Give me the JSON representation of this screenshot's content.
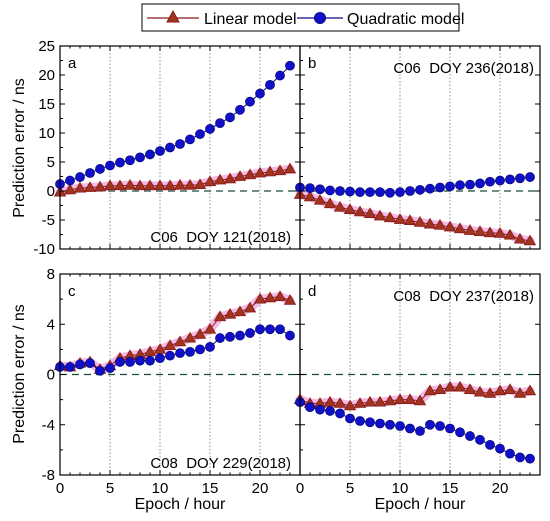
{
  "legend": {
    "placement": "top-center",
    "items": [
      {
        "label": "Linear model",
        "marker": "triangle",
        "color": "#8b1a1a"
      },
      {
        "label": "Quadratic model",
        "marker": "circle",
        "color": "#0a10c0"
      }
    ]
  },
  "colors": {
    "linear_stroke": "#8b1a1a",
    "linear_fill": "#a0341e",
    "linear_shadow": "#f2b3e2",
    "quadratic_fill": "#1010c8",
    "quadratic_stroke": "#0a0a80",
    "zero_line": "#1a4a3a",
    "vgrid": "#777777"
  },
  "axes": {
    "xlabel": "Epoch / hour",
    "ylabel": "Prediction error / ns",
    "xlim": [
      0,
      24
    ],
    "xticks": [
      0,
      5,
      10,
      15,
      20
    ],
    "grid_vertical_at": [
      5,
      10,
      15,
      20
    ]
  },
  "chart_data": [
    {
      "type": "line",
      "panel": "a",
      "annotation": "C06  DOY 121(2018)",
      "xlim": [
        0,
        24
      ],
      "ylim": [
        -10,
        25
      ],
      "yticks": [
        -10,
        -5,
        0,
        5,
        10,
        15,
        20,
        25
      ],
      "series": [
        {
          "name": "Linear model",
          "x": [
            0,
            1,
            2,
            3,
            4,
            5,
            6,
            7,
            8,
            9,
            10,
            11,
            12,
            13,
            14,
            15,
            16,
            17,
            18,
            19,
            20,
            21,
            22,
            23
          ],
          "values": [
            -0.2,
            0.2,
            0.5,
            0.6,
            0.7,
            0.9,
            0.9,
            1.0,
            0.9,
            0.9,
            0.9,
            0.9,
            1.0,
            1.0,
            1.1,
            1.6,
            1.9,
            2.1,
            2.5,
            2.8,
            3.1,
            3.3,
            3.5,
            3.8
          ]
        },
        {
          "name": "Quadratic model",
          "x": [
            0,
            1,
            2,
            3,
            4,
            5,
            6,
            7,
            8,
            9,
            10,
            11,
            12,
            13,
            14,
            15,
            16,
            17,
            18,
            19,
            20,
            21,
            22,
            23
          ],
          "values": [
            1.2,
            1.8,
            2.4,
            3.1,
            3.8,
            4.4,
            4.9,
            5.3,
            5.8,
            6.3,
            6.9,
            7.5,
            8.1,
            8.9,
            9.8,
            10.7,
            11.7,
            12.7,
            14.0,
            15.4,
            16.8,
            18.3,
            19.9,
            21.6
          ]
        }
      ]
    },
    {
      "type": "line",
      "panel": "b",
      "annotation": "C06  DOY 236(2018)",
      "xlim": [
        0,
        24
      ],
      "ylim": [
        -10,
        25
      ],
      "yticks": [
        -10,
        -5,
        0,
        5,
        10,
        15,
        20,
        25
      ],
      "series": [
        {
          "name": "Linear model",
          "x": [
            0,
            1,
            2,
            3,
            4,
            5,
            6,
            7,
            8,
            9,
            10,
            11,
            12,
            13,
            14,
            15,
            16,
            17,
            18,
            19,
            20,
            21,
            22,
            23
          ],
          "values": [
            -0.6,
            -1.0,
            -1.6,
            -2.2,
            -2.8,
            -3.2,
            -3.6,
            -3.9,
            -4.3,
            -4.6,
            -4.9,
            -5.1,
            -5.4,
            -5.7,
            -5.9,
            -6.2,
            -6.5,
            -6.8,
            -7.0,
            -7.2,
            -7.3,
            -7.6,
            -8.3,
            -8.6
          ]
        },
        {
          "name": "Quadratic model",
          "x": [
            0,
            1,
            2,
            3,
            4,
            5,
            6,
            7,
            8,
            9,
            10,
            11,
            12,
            13,
            14,
            15,
            16,
            17,
            18,
            19,
            20,
            21,
            22,
            23
          ],
          "values": [
            0.6,
            0.5,
            0.3,
            0.1,
            0.0,
            -0.1,
            -0.2,
            -0.2,
            -0.2,
            -0.3,
            -0.2,
            0.0,
            0.2,
            0.4,
            0.6,
            0.8,
            1.0,
            1.1,
            1.3,
            1.6,
            1.8,
            2.0,
            2.2,
            2.4
          ]
        }
      ]
    },
    {
      "type": "line",
      "panel": "c",
      "annotation": "C08  DOY 229(2018)",
      "xlim": [
        0,
        24
      ],
      "ylim": [
        -8,
        8
      ],
      "yticks": [
        -8,
        -4,
        0,
        4,
        8
      ],
      "series": [
        {
          "name": "Linear model",
          "x": [
            0,
            1,
            2,
            3,
            4,
            5,
            6,
            7,
            8,
            9,
            10,
            11,
            12,
            13,
            14,
            15,
            16,
            17,
            18,
            19,
            20,
            21,
            22,
            23
          ],
          "values": [
            0.7,
            0.6,
            0.9,
            1.0,
            0.4,
            0.7,
            1.3,
            1.5,
            1.6,
            1.8,
            2.0,
            2.3,
            2.6,
            2.9,
            3.2,
            3.6,
            4.6,
            4.8,
            5.0,
            5.3,
            6.0,
            6.1,
            6.2,
            5.9
          ]
        },
        {
          "name": "Quadratic model",
          "x": [
            0,
            1,
            2,
            3,
            4,
            5,
            6,
            7,
            8,
            9,
            10,
            11,
            12,
            13,
            14,
            15,
            16,
            17,
            18,
            19,
            20,
            21,
            22,
            23
          ],
          "values": [
            0.6,
            0.6,
            0.8,
            0.9,
            0.3,
            0.5,
            1.0,
            1.0,
            1.1,
            1.1,
            1.3,
            1.5,
            1.7,
            1.8,
            2.0,
            2.2,
            2.9,
            3.0,
            3.1,
            3.3,
            3.6,
            3.6,
            3.6,
            3.1
          ]
        }
      ]
    },
    {
      "type": "line",
      "panel": "d",
      "annotation": "C08  DOY 237(2018)",
      "xlim": [
        0,
        24
      ],
      "ylim": [
        -8,
        8
      ],
      "yticks": [
        -8,
        -4,
        0,
        4,
        8
      ],
      "series": [
        {
          "name": "Linear model",
          "x": [
            0,
            1,
            2,
            3,
            4,
            5,
            6,
            7,
            8,
            9,
            10,
            11,
            12,
            13,
            14,
            15,
            16,
            17,
            18,
            19,
            20,
            21,
            22,
            23
          ],
          "values": [
            -2.0,
            -2.3,
            -2.3,
            -2.2,
            -2.3,
            -2.5,
            -2.3,
            -2.2,
            -2.2,
            -2.1,
            -2.0,
            -2.0,
            -2.1,
            -1.3,
            -1.2,
            -1.0,
            -1.0,
            -1.2,
            -1.4,
            -1.5,
            -1.3,
            -1.2,
            -1.5,
            -1.3
          ]
        },
        {
          "name": "Quadratic model",
          "x": [
            0,
            1,
            2,
            3,
            4,
            5,
            6,
            7,
            8,
            9,
            10,
            11,
            12,
            13,
            14,
            15,
            16,
            17,
            18,
            19,
            20,
            21,
            22,
            23
          ],
          "values": [
            -2.2,
            -2.6,
            -2.8,
            -2.9,
            -3.1,
            -3.5,
            -3.7,
            -3.8,
            -3.9,
            -4.0,
            -4.1,
            -4.3,
            -4.5,
            -4.0,
            -4.1,
            -4.3,
            -4.6,
            -4.9,
            -5.2,
            -5.6,
            -5.9,
            -6.3,
            -6.6,
            -6.7
          ]
        }
      ]
    }
  ]
}
